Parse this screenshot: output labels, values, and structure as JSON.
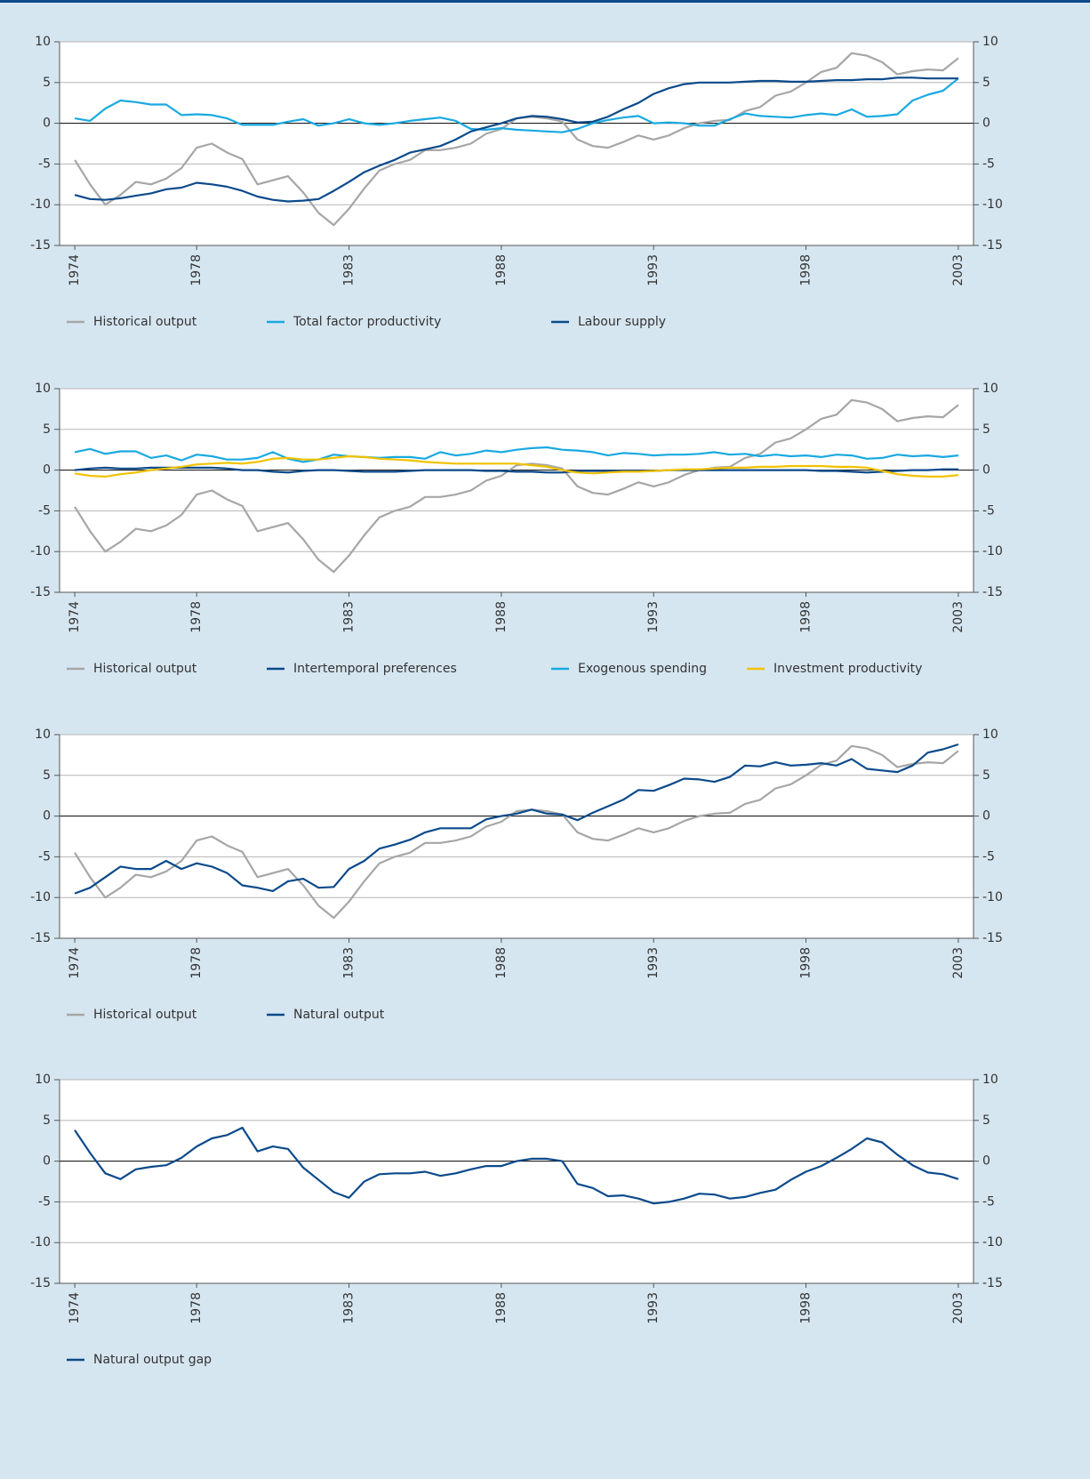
{
  "chart_data": [
    {
      "type": "line",
      "xlim": [
        1973.5,
        2003.5
      ],
      "xticks": [
        1974,
        1978,
        1983,
        1988,
        1993,
        1998,
        2003
      ],
      "ylim": [
        -15,
        10
      ],
      "yticks": [
        -15,
        -10,
        -5,
        0,
        5,
        10
      ],
      "grid": true,
      "x": [
        1974,
        1974.5,
        1975,
        1975.5,
        1976,
        1976.5,
        1977,
        1977.5,
        1978,
        1978.5,
        1979,
        1979.5,
        1980,
        1980.5,
        1981,
        1981.5,
        1982,
        1982.5,
        1983,
        1983.5,
        1984,
        1984.5,
        1985,
        1985.5,
        1986,
        1986.5,
        1987,
        1987.5,
        1988,
        1988.5,
        1989,
        1989.5,
        1990,
        1990.5,
        1991,
        1991.5,
        1992,
        1992.5,
        1993,
        1993.5,
        1994,
        1994.5,
        1995,
        1995.5,
        1996,
        1996.5,
        1997,
        1997.5,
        1998,
        1998.5,
        1999,
        1999.5,
        2000,
        2000.5,
        2001,
        2001.5,
        2002,
        2002.5,
        2003
      ],
      "series": [
        {
          "name": "Historical output",
          "color": "#a6a6a6",
          "values": [
            -4.5,
            -7.5,
            -10,
            -8.8,
            -7.2,
            -7.5,
            -6.8,
            -5.5,
            -3,
            -2.5,
            -3.6,
            -4.4,
            -7.5,
            -7,
            -6.5,
            -8.5,
            -11,
            -12.5,
            -10.5,
            -8,
            -5.8,
            -5,
            -4.5,
            -3.3,
            -3.3,
            -3,
            -2.5,
            -1.3,
            -0.7,
            0.6,
            0.8,
            0.6,
            0.2,
            -2,
            -2.8,
            -3,
            -2.3,
            -1.5,
            -2,
            -1.5,
            -0.6,
            0,
            0.3,
            0.4,
            1.5,
            2,
            3.4,
            3.9,
            5,
            6.3,
            6.8,
            8.6,
            8.3,
            7.5,
            6,
            6.4,
            6.6,
            6.5,
            8
          ]
        },
        {
          "name": "Total factor productivity",
          "color": "#19a9e1",
          "values": [
            0.6,
            0.3,
            1.8,
            2.8,
            2.6,
            2.3,
            2.3,
            1,
            1.1,
            1,
            0.6,
            -0.2,
            -0.2,
            -0.2,
            0.2,
            0.5,
            -0.3,
            0,
            0.5,
            0,
            -0.2,
            0,
            0.3,
            0.5,
            0.7,
            0.3,
            -0.7,
            -0.8,
            -0.6,
            -0.8,
            -0.9,
            -1,
            -1.1,
            -0.7,
            0,
            0.4,
            0.7,
            0.9,
            0,
            0.1,
            0,
            -0.3,
            -0.3,
            0.5,
            1.2,
            0.9,
            0.8,
            0.7,
            1,
            1.2,
            1,
            1.7,
            0.8,
            0.9,
            1.1,
            2.8,
            3.5,
            4,
            5.5
          ]
        },
        {
          "name": "Labour supply",
          "color": "#0b4a8b",
          "values": [
            -8.8,
            -9.3,
            -9.4,
            -9.2,
            -8.9,
            -8.6,
            -8.1,
            -7.9,
            -7.3,
            -7.5,
            -7.8,
            -8.3,
            -9,
            -9.4,
            -9.6,
            -9.5,
            -9.3,
            -8.3,
            -7.2,
            -6,
            -5.2,
            -4.5,
            -3.6,
            -3.2,
            -2.8,
            -2,
            -1,
            -0.5,
            0,
            0.6,
            0.9,
            0.8,
            0.5,
            0.1,
            0.2,
            0.8,
            1.7,
            2.5,
            3.6,
            4.3,
            4.8,
            5,
            5,
            5,
            5.1,
            5.2,
            5.2,
            5.1,
            5.1,
            5.2,
            5.3,
            5.3,
            5.4,
            5.4,
            5.6,
            5.6,
            5.5,
            5.5,
            5.5
          ]
        }
      ]
    },
    {
      "type": "line",
      "xlim": [
        1973.5,
        2003.5
      ],
      "xticks": [
        1974,
        1978,
        1983,
        1988,
        1993,
        1998,
        2003
      ],
      "ylim": [
        -15,
        10
      ],
      "yticks": [
        -15,
        -10,
        -5,
        0,
        5,
        10
      ],
      "grid": true,
      "x": [
        1974,
        1974.5,
        1975,
        1975.5,
        1976,
        1976.5,
        1977,
        1977.5,
        1978,
        1978.5,
        1979,
        1979.5,
        1980,
        1980.5,
        1981,
        1981.5,
        1982,
        1982.5,
        1983,
        1983.5,
        1984,
        1984.5,
        1985,
        1985.5,
        1986,
        1986.5,
        1987,
        1987.5,
        1988,
        1988.5,
        1989,
        1989.5,
        1990,
        1990.5,
        1991,
        1991.5,
        1992,
        1992.5,
        1993,
        1993.5,
        1994,
        1994.5,
        1995,
        1995.5,
        1996,
        1996.5,
        1997,
        1997.5,
        1998,
        1998.5,
        1999,
        1999.5,
        2000,
        2000.5,
        2001,
        2001.5,
        2002,
        2002.5,
        2003
      ],
      "series": [
        {
          "name": "Historical output",
          "color": "#a6a6a6",
          "values": [
            -4.5,
            -7.5,
            -10,
            -8.8,
            -7.2,
            -7.5,
            -6.8,
            -5.5,
            -3,
            -2.5,
            -3.6,
            -4.4,
            -7.5,
            -7,
            -6.5,
            -8.5,
            -11,
            -12.5,
            -10.5,
            -8,
            -5.8,
            -5,
            -4.5,
            -3.3,
            -3.3,
            -3,
            -2.5,
            -1.3,
            -0.7,
            0.6,
            0.8,
            0.6,
            0.2,
            -2,
            -2.8,
            -3,
            -2.3,
            -1.5,
            -2,
            -1.5,
            -0.6,
            0,
            0.3,
            0.4,
            1.5,
            2,
            3.4,
            3.9,
            5,
            6.3,
            6.8,
            8.6,
            8.3,
            7.5,
            6,
            6.4,
            6.6,
            6.5,
            8
          ]
        },
        {
          "name": "Intertemporal preferences",
          "color": "#0b4a8b",
          "values": [
            0,
            0.2,
            0.3,
            0.2,
            0.2,
            0.3,
            0.3,
            0.3,
            0.3,
            0.3,
            0.2,
            0,
            0,
            -0.2,
            -0.3,
            -0.1,
            0,
            0,
            -0.1,
            -0.2,
            -0.2,
            -0.2,
            -0.1,
            0,
            0,
            0,
            0,
            -0.1,
            -0.1,
            -0.2,
            -0.2,
            -0.3,
            -0.3,
            -0.1,
            -0.1,
            -0.1,
            -0.1,
            -0.1,
            -0.1,
            0,
            0,
            0,
            0,
            0,
            0,
            0,
            0,
            0,
            0,
            -0.1,
            -0.1,
            -0.2,
            -0.3,
            -0.2,
            -0.1,
            0,
            0,
            0.1,
            0.1
          ]
        },
        {
          "name": "Exogenous spending",
          "color": "#19a9e1",
          "values": [
            2.2,
            2.6,
            2,
            2.3,
            2.3,
            1.5,
            1.8,
            1.2,
            1.9,
            1.7,
            1.3,
            1.3,
            1.5,
            2.2,
            1.4,
            1,
            1.3,
            1.9,
            1.7,
            1.6,
            1.5,
            1.6,
            1.6,
            1.4,
            2.2,
            1.8,
            2,
            2.4,
            2.2,
            2.5,
            2.7,
            2.8,
            2.5,
            2.4,
            2.2,
            1.8,
            2.1,
            2,
            1.8,
            1.9,
            1.9,
            2,
            2.2,
            1.9,
            2,
            1.7,
            1.9,
            1.7,
            1.8,
            1.6,
            1.9,
            1.8,
            1.4,
            1.5,
            1.9,
            1.7,
            1.8,
            1.6,
            1.8
          ]
        },
        {
          "name": "Investment productivity",
          "color": "#f2c200",
          "values": [
            -0.4,
            -0.7,
            -0.8,
            -0.5,
            -0.3,
            0,
            0.2,
            0.4,
            0.7,
            0.8,
            0.9,
            0.8,
            1,
            1.4,
            1.5,
            1.3,
            1.3,
            1.5,
            1.7,
            1.6,
            1.4,
            1.3,
            1.2,
            1,
            0.9,
            0.8,
            0.8,
            0.8,
            0.8,
            0.8,
            0.6,
            0.4,
            0,
            -0.3,
            -0.4,
            -0.3,
            -0.2,
            -0.2,
            -0.1,
            0,
            0.1,
            0.1,
            0.2,
            0.3,
            0.3,
            0.4,
            0.4,
            0.5,
            0.5,
            0.5,
            0.4,
            0.4,
            0.3,
            -0.1,
            -0.5,
            -0.7,
            -0.8,
            -0.8,
            -0.6
          ]
        }
      ]
    },
    {
      "type": "line",
      "xlim": [
        1973.5,
        2003.5
      ],
      "xticks": [
        1974,
        1978,
        1983,
        1988,
        1993,
        1998,
        2003
      ],
      "ylim": [
        -15,
        10
      ],
      "yticks": [
        -15,
        -10,
        -5,
        0,
        5,
        10
      ],
      "grid": true,
      "x": [
        1974,
        1974.5,
        1975,
        1975.5,
        1976,
        1976.5,
        1977,
        1977.5,
        1978,
        1978.5,
        1979,
        1979.5,
        1980,
        1980.5,
        1981,
        1981.5,
        1982,
        1982.5,
        1983,
        1983.5,
        1984,
        1984.5,
        1985,
        1985.5,
        1986,
        1986.5,
        1987,
        1987.5,
        1988,
        1988.5,
        1989,
        1989.5,
        1990,
        1990.5,
        1991,
        1991.5,
        1992,
        1992.5,
        1993,
        1993.5,
        1994,
        1994.5,
        1995,
        1995.5,
        1996,
        1996.5,
        1997,
        1997.5,
        1998,
        1998.5,
        1999,
        1999.5,
        2000,
        2000.5,
        2001,
        2001.5,
        2002,
        2002.5,
        2003
      ],
      "series": [
        {
          "name": "Historical output",
          "color": "#a6a6a6",
          "values": [
            -4.5,
            -7.5,
            -10,
            -8.8,
            -7.2,
            -7.5,
            -6.8,
            -5.5,
            -3,
            -2.5,
            -3.6,
            -4.4,
            -7.5,
            -7,
            -6.5,
            -8.5,
            -11,
            -12.5,
            -10.5,
            -8,
            -5.8,
            -5,
            -4.5,
            -3.3,
            -3.3,
            -3,
            -2.5,
            -1.3,
            -0.7,
            0.6,
            0.8,
            0.6,
            0.2,
            -2,
            -2.8,
            -3,
            -2.3,
            -1.5,
            -2,
            -1.5,
            -0.6,
            0,
            0.3,
            0.4,
            1.5,
            2,
            3.4,
            3.9,
            5,
            6.3,
            6.8,
            8.6,
            8.3,
            7.5,
            6,
            6.4,
            6.6,
            6.5,
            8
          ]
        },
        {
          "name": "Natural output",
          "color": "#0b4a8b",
          "values": [
            -9.5,
            -8.8,
            -7.5,
            -6.2,
            -6.5,
            -6.5,
            -5.5,
            -6.5,
            -5.8,
            -6.2,
            -7,
            -8.5,
            -8.8,
            -9.2,
            -8,
            -7.7,
            -8.8,
            -8.7,
            -6.5,
            -5.5,
            -4,
            -3.5,
            -2.9,
            -2,
            -1.5,
            -1.5,
            -1.5,
            -0.4,
            0,
            0.3,
            0.8,
            0.3,
            0.2,
            -0.5,
            0.4,
            1.2,
            2,
            3.2,
            3.1,
            3.8,
            4.6,
            4.5,
            4.2,
            4.8,
            6.2,
            6.1,
            6.6,
            6.2,
            6.3,
            6.5,
            6.2,
            7,
            5.8,
            5.6,
            5.4,
            6.2,
            7.8,
            8.2,
            8.8
          ]
        }
      ]
    },
    {
      "type": "line",
      "xlim": [
        1973.5,
        2003.5
      ],
      "xticks": [
        1974,
        1978,
        1983,
        1988,
        1993,
        1998,
        2003
      ],
      "ylim": [
        -15,
        10
      ],
      "yticks": [
        -15,
        -10,
        -5,
        0,
        5,
        10
      ],
      "grid": true,
      "x": [
        1974,
        1974.5,
        1975,
        1975.5,
        1976,
        1976.5,
        1977,
        1977.5,
        1978,
        1978.5,
        1979,
        1979.5,
        1980,
        1980.5,
        1981,
        1981.5,
        1982,
        1982.5,
        1983,
        1983.5,
        1984,
        1984.5,
        1985,
        1985.5,
        1986,
        1986.5,
        1987,
        1987.5,
        1988,
        1988.5,
        1989,
        1989.5,
        1990,
        1990.5,
        1991,
        1991.5,
        1992,
        1992.5,
        1993,
        1993.5,
        1994,
        1994.5,
        1995,
        1995.5,
        1996,
        1996.5,
        1997,
        1997.5,
        1998,
        1998.5,
        1999,
        1999.5,
        2000,
        2000.5,
        2001,
        2001.5,
        2002,
        2002.5,
        2003
      ],
      "series": [
        {
          "name": "Natural output gap",
          "color": "#0b4a8b",
          "values": [
            3.8,
            1,
            -1.5,
            -2.2,
            -1,
            -0.7,
            -0.5,
            0.4,
            1.8,
            2.8,
            3.2,
            4.1,
            1.2,
            1.8,
            1.5,
            -0.8,
            -2.3,
            -3.8,
            -4.5,
            -2.5,
            -1.6,
            -1.5,
            -1.5,
            -1.3,
            -1.8,
            -1.5,
            -1,
            -0.6,
            -0.6,
            0,
            0.3,
            0.3,
            0,
            -2.8,
            -3.3,
            -4.3,
            -4.2,
            -4.6,
            -5.2,
            -5,
            -4.6,
            -4,
            -4.1,
            -4.6,
            -4.4,
            -3.9,
            -3.5,
            -2.3,
            -1.3,
            -0.6,
            0.4,
            1.5,
            2.8,
            2.3,
            0.8,
            -0.5,
            -1.4,
            -1.6,
            -2.2
          ]
        }
      ]
    }
  ]
}
